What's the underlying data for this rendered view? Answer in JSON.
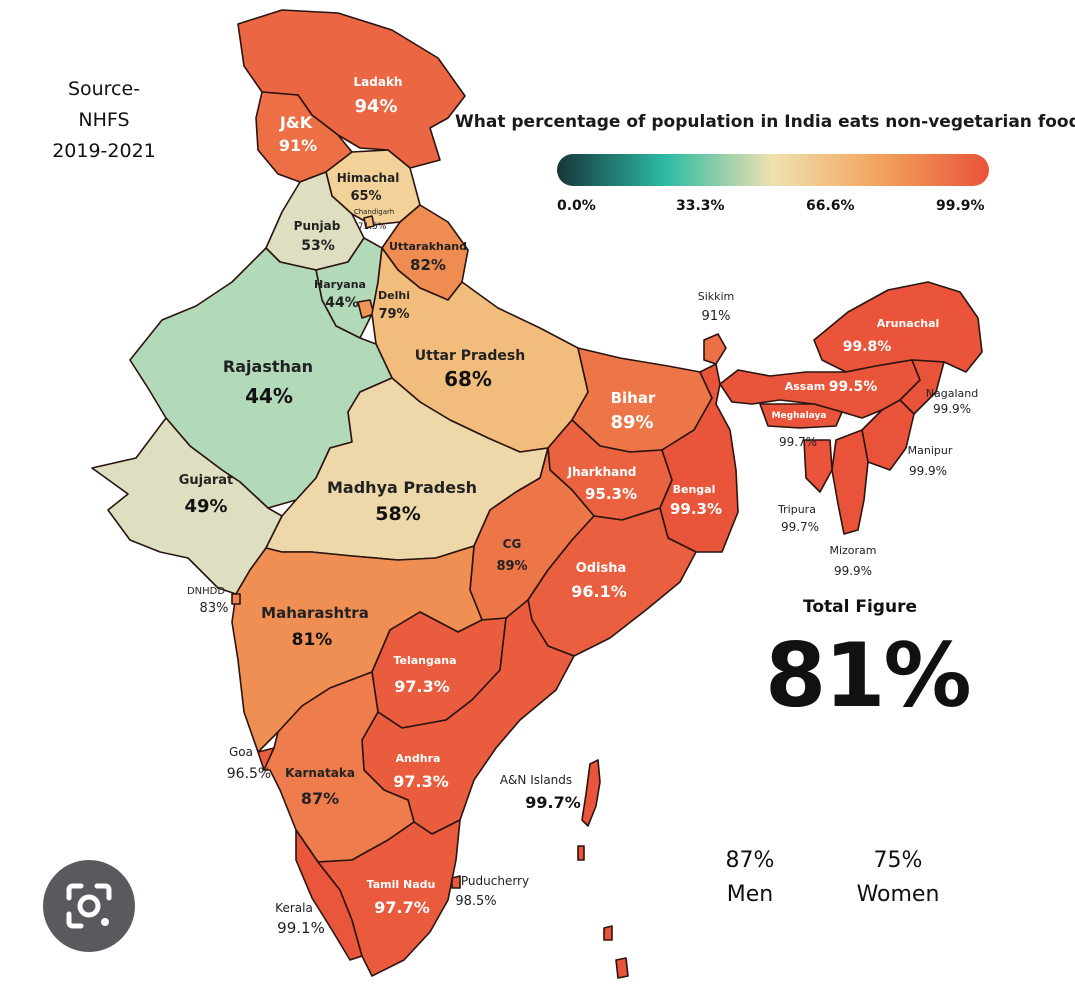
{
  "source": {
    "line1": "Source-",
    "line2": "NHFS",
    "line3": "2019-2021"
  },
  "title": "What percentage of population in India eats non-vegetarian food?",
  "legend": {
    "ticks": [
      "0.0%",
      "33.3%",
      "66.6%",
      "99.9%"
    ],
    "gradient_colors": [
      "#17353b",
      "#2bbba3",
      "#f0e1b0",
      "#f2a25c",
      "#e9533a"
    ]
  },
  "total": {
    "label": "Total Figure",
    "value": "81%"
  },
  "men": {
    "pct": "87%",
    "label": "Men"
  },
  "women": {
    "pct": "75%",
    "label": "Women"
  },
  "regions": [
    {
      "name": "Ladakh",
      "value": "94%",
      "pct": 94
    },
    {
      "name": "J&K",
      "value": "91%",
      "pct": 91
    },
    {
      "name": "Himachal",
      "value": "65%",
      "pct": 65
    },
    {
      "name": "Chandigarh",
      "value": "71.5%",
      "pct": 71.5
    },
    {
      "name": "Punjab",
      "value": "53%",
      "pct": 53
    },
    {
      "name": "Uttarakhand",
      "value": "82%",
      "pct": 82
    },
    {
      "name": "Haryana",
      "value": "44%",
      "pct": 44
    },
    {
      "name": "Delhi",
      "value": "79%",
      "pct": 79
    },
    {
      "name": "Rajasthan",
      "value": "44%",
      "pct": 44
    },
    {
      "name": "Uttar Pradesh",
      "value": "68%",
      "pct": 68
    },
    {
      "name": "Gujarat",
      "value": "49%",
      "pct": 49
    },
    {
      "name": "Madhya Pradesh",
      "value": "58%",
      "pct": 58
    },
    {
      "name": "Bihar",
      "value": "89%",
      "pct": 89
    },
    {
      "name": "Jharkhand",
      "value": "95.3%",
      "pct": 95.3
    },
    {
      "name": "Bengal",
      "value": "99.3%",
      "pct": 99.3
    },
    {
      "name": "Sikkim",
      "value": "91%",
      "pct": 91
    },
    {
      "name": "Arunachal",
      "value": "99.8%",
      "pct": 99.8
    },
    {
      "name": "Assam",
      "value": "99.5%",
      "pct": 99.5
    },
    {
      "name": "Meghalaya",
      "value": "99.7%",
      "pct": 99.7
    },
    {
      "name": "Nagaland",
      "value": "99.9%",
      "pct": 99.9
    },
    {
      "name": "Manipur",
      "value": "99.9%",
      "pct": 99.9
    },
    {
      "name": "Tripura",
      "value": "99.7%",
      "pct": 99.7
    },
    {
      "name": "Mizoram",
      "value": "99.9%",
      "pct": 99.9
    },
    {
      "name": "DNHDD",
      "value": "83%",
      "pct": 83
    },
    {
      "name": "Maharashtra",
      "value": "81%",
      "pct": 81
    },
    {
      "name": "CG",
      "value": "89%",
      "pct": 89
    },
    {
      "name": "Odisha",
      "value": "96.1%",
      "pct": 96.1
    },
    {
      "name": "Telangana",
      "value": "97.3%",
      "pct": 97.3
    },
    {
      "name": "Goa",
      "value": "96.5%",
      "pct": 96.5
    },
    {
      "name": "Karnataka",
      "value": "87%",
      "pct": 87
    },
    {
      "name": "Andhra",
      "value": "97.3%",
      "pct": 97.3
    },
    {
      "name": "A&N Islands",
      "value": "99.7%",
      "pct": 99.7
    },
    {
      "name": "Kerala",
      "value": "99.1%",
      "pct": 99.1
    },
    {
      "name": "Tamil Nadu",
      "value": "97.7%",
      "pct": 97.7
    },
    {
      "name": "Puducherry",
      "value": "98.5%",
      "pct": 98.5
    }
  ]
}
